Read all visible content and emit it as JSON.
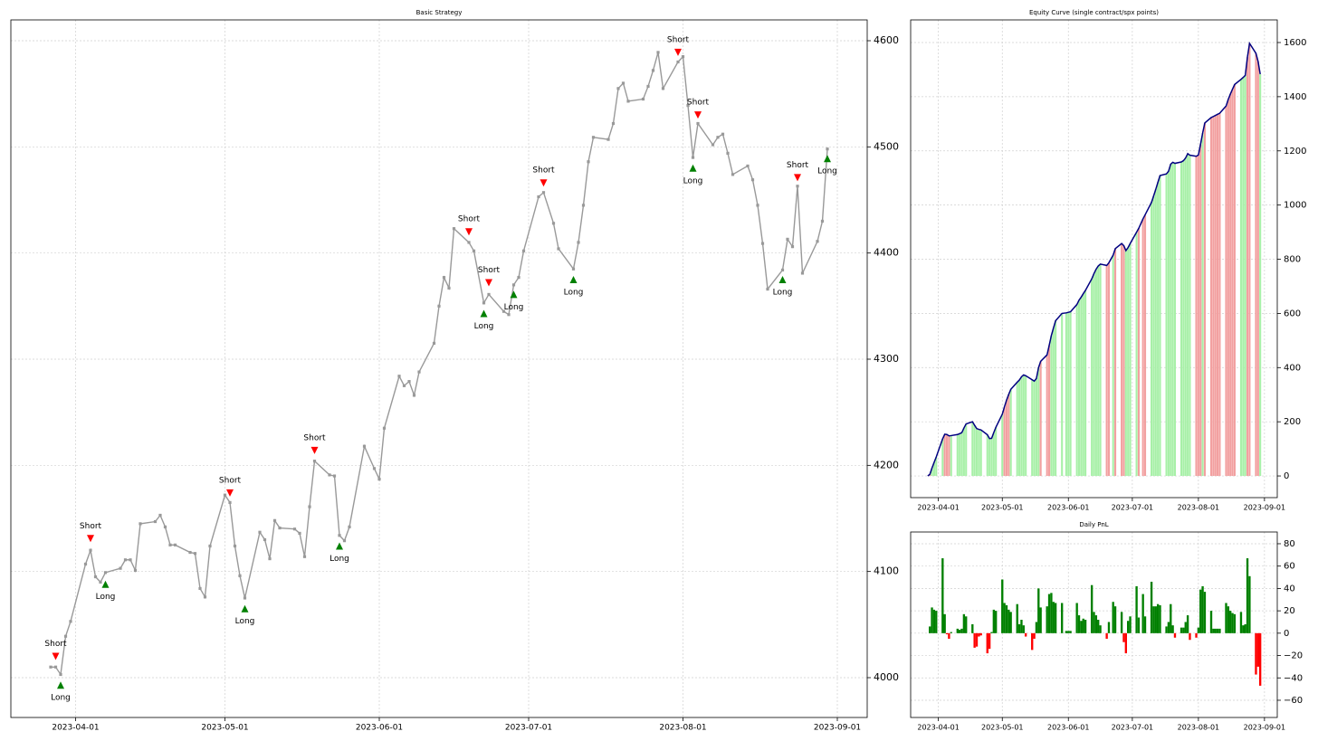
{
  "chart_data": [
    {
      "type": "line",
      "title": "Basic Strategy",
      "x": [
        "2023-03-27",
        "2023-03-28",
        "2023-03-29",
        "2023-03-30",
        "2023-03-31",
        "2023-04-03",
        "2023-04-04",
        "2023-04-05",
        "2023-04-06",
        "2023-04-07",
        "2023-04-10",
        "2023-04-11",
        "2023-04-12",
        "2023-04-13",
        "2023-04-14",
        "2023-04-17",
        "2023-04-18",
        "2023-04-19",
        "2023-04-20",
        "2023-04-21",
        "2023-04-24",
        "2023-04-25",
        "2023-04-26",
        "2023-04-27",
        "2023-04-28",
        "2023-05-01",
        "2023-05-02",
        "2023-05-03",
        "2023-05-04",
        "2023-05-05",
        "2023-05-08",
        "2023-05-09",
        "2023-05-10",
        "2023-05-11",
        "2023-05-12",
        "2023-05-15",
        "2023-05-16",
        "2023-05-17",
        "2023-05-18",
        "2023-05-19",
        "2023-05-22",
        "2023-05-23",
        "2023-05-24",
        "2023-05-25",
        "2023-05-26",
        "2023-05-29",
        "2023-05-31",
        "2023-06-01",
        "2023-06-02",
        "2023-06-05",
        "2023-06-06",
        "2023-06-07",
        "2023-06-08",
        "2023-06-09",
        "2023-06-12",
        "2023-06-13",
        "2023-06-14",
        "2023-06-15",
        "2023-06-16",
        "2023-06-19",
        "2023-06-20",
        "2023-06-22",
        "2023-06-23",
        "2023-06-26",
        "2023-06-27",
        "2023-06-28",
        "2023-06-29",
        "2023-06-30",
        "2023-07-03",
        "2023-07-04",
        "2023-07-06",
        "2023-07-07",
        "2023-07-10",
        "2023-07-11",
        "2023-07-12",
        "2023-07-13",
        "2023-07-14",
        "2023-07-17",
        "2023-07-18",
        "2023-07-19",
        "2023-07-20",
        "2023-07-21",
        "2023-07-24",
        "2023-07-25",
        "2023-07-26",
        "2023-07-27",
        "2023-07-28",
        "2023-07-31",
        "2023-08-01",
        "2023-08-02",
        "2023-08-03",
        "2023-08-04",
        "2023-08-07",
        "2023-08-08",
        "2023-08-09",
        "2023-08-10",
        "2023-08-11",
        "2023-08-14",
        "2023-08-15",
        "2023-08-16",
        "2023-08-17",
        "2023-08-18",
        "2023-08-21",
        "2023-08-22",
        "2023-08-23",
        "2023-08-24",
        "2023-08-25",
        "2023-08-28",
        "2023-08-29",
        "2023-08-30"
      ],
      "values": [
        4010,
        4010,
        4003,
        4039,
        4053,
        4107,
        4120,
        4095,
        4090,
        4099,
        4103,
        4111,
        4111,
        4101,
        4145,
        4147,
        4153,
        4142,
        4125,
        4125,
        4118,
        4117,
        4084,
        4076,
        4124,
        4172,
        4165,
        4124,
        4096,
        4075,
        4137,
        4130,
        4112,
        4148,
        4141,
        4140,
        4136,
        4114,
        4161,
        4204,
        4191,
        4190,
        4134,
        4129,
        4142,
        4218,
        4197,
        4187,
        4235,
        4284,
        4275,
        4279,
        4266,
        4288,
        4315,
        4350,
        4377,
        4367,
        4423,
        4410,
        4402,
        4353,
        4361,
        4345,
        4342,
        4370,
        4377,
        4402,
        4453,
        4457,
        4428,
        4404,
        4385,
        4410,
        4445,
        4486,
        4509,
        4507,
        4522,
        4555,
        4560,
        4543,
        4545,
        4557,
        4572,
        4589,
        4555,
        4580,
        4585,
        4539,
        4490,
        4522,
        4502,
        4509,
        4512,
        4494,
        4474,
        4482,
        4469,
        4445,
        4409,
        4366,
        4384,
        4413,
        4406,
        4463,
        4381,
        4411,
        4430,
        4498
      ],
      "color": "#999999",
      "short_signals": {
        "label": "Short",
        "color": "#ff0000",
        "x": [
          "2023-03-28",
          "2023-04-04",
          "2023-05-02",
          "2023-05-19",
          "2023-06-19",
          "2023-06-23",
          "2023-07-04",
          "2023-07-31",
          "2023-08-04",
          "2023-08-24"
        ],
        "values": [
          4020,
          4131,
          4174,
          4214,
          4420,
          4372,
          4466,
          4589,
          4530,
          4471
        ]
      },
      "long_signals": {
        "label": "Long",
        "color": "#008000",
        "x": [
          "2023-03-29",
          "2023-04-07",
          "2023-05-05",
          "2023-05-24",
          "2023-06-22",
          "2023-06-28",
          "2023-07-10",
          "2023-08-03",
          "2023-08-21",
          "2023-08-30"
        ],
        "values": [
          3993,
          4088,
          4065,
          4124,
          4343,
          4361,
          4375,
          4480,
          4375,
          4489
        ]
      },
      "xlim": [
        "2023-03-19",
        "2023-09-07"
      ],
      "xticks": [
        "2023-04-01",
        "2023-05-01",
        "2023-06-01",
        "2023-07-01",
        "2023-08-01",
        "2023-09-01"
      ],
      "ylim": [
        3962.5,
        4619.6
      ],
      "yticks": [
        4000,
        4100,
        4200,
        4300,
        4400,
        4500,
        4600
      ],
      "grid": true
    },
    {
      "type": "equity",
      "title": "Equity Curve (single contract/spx points)",
      "x": [
        "2023-03-27",
        "2023-03-28",
        "2023-03-29",
        "2023-03-30",
        "2023-03-31",
        "2023-04-03",
        "2023-04-04",
        "2023-04-05",
        "2023-04-06",
        "2023-04-07",
        "2023-04-10",
        "2023-04-11",
        "2023-04-12",
        "2023-04-13",
        "2023-04-14",
        "2023-04-17",
        "2023-04-18",
        "2023-04-19",
        "2023-04-20",
        "2023-04-21",
        "2023-04-24",
        "2023-04-25",
        "2023-04-26",
        "2023-04-27",
        "2023-04-28",
        "2023-05-01",
        "2023-05-02",
        "2023-05-03",
        "2023-05-04",
        "2023-05-05",
        "2023-05-08",
        "2023-05-09",
        "2023-05-10",
        "2023-05-11",
        "2023-05-12",
        "2023-05-15",
        "2023-05-16",
        "2023-05-17",
        "2023-05-18",
        "2023-05-19",
        "2023-05-22",
        "2023-05-23",
        "2023-05-24",
        "2023-05-25",
        "2023-05-26",
        "2023-05-29",
        "2023-05-31",
        "2023-06-01",
        "2023-06-02",
        "2023-06-05",
        "2023-06-06",
        "2023-06-07",
        "2023-06-08",
        "2023-06-09",
        "2023-06-12",
        "2023-06-13",
        "2023-06-14",
        "2023-06-15",
        "2023-06-16",
        "2023-06-19",
        "2023-06-20",
        "2023-06-22",
        "2023-06-23",
        "2023-06-26",
        "2023-06-27",
        "2023-06-28",
        "2023-06-29",
        "2023-06-30",
        "2023-07-03",
        "2023-07-04",
        "2023-07-06",
        "2023-07-07",
        "2023-07-10",
        "2023-07-11",
        "2023-07-12",
        "2023-07-13",
        "2023-07-14",
        "2023-07-17",
        "2023-07-18",
        "2023-07-19",
        "2023-07-20",
        "2023-07-21",
        "2023-07-24",
        "2023-07-25",
        "2023-07-26",
        "2023-07-27",
        "2023-07-28",
        "2023-07-31",
        "2023-08-01",
        "2023-08-02",
        "2023-08-03",
        "2023-08-04",
        "2023-08-07",
        "2023-08-08",
        "2023-08-09",
        "2023-08-10",
        "2023-08-11",
        "2023-08-14",
        "2023-08-15",
        "2023-08-16",
        "2023-08-17",
        "2023-08-18",
        "2023-08-21",
        "2023-08-22",
        "2023-08-23",
        "2023-08-24",
        "2023-08-25",
        "2023-08-28",
        "2023-08-29",
        "2023-08-30"
      ],
      "values": [
        0,
        6,
        29,
        50,
        70,
        137,
        154,
        153,
        148,
        149,
        153,
        156,
        160,
        177,
        192,
        200,
        187,
        175,
        172,
        170,
        152,
        138,
        139,
        160,
        180,
        228,
        255,
        280,
        301,
        320,
        346,
        354,
        366,
        373,
        370,
        355,
        350,
        360,
        400,
        423,
        447,
        482,
        518,
        546,
        573,
        600,
        602,
        604,
        606,
        633,
        649,
        660,
        673,
        685,
        728,
        747,
        763,
        775,
        782,
        777,
        787,
        815,
        839,
        858,
        850,
        832,
        843,
        858,
        900,
        914,
        949,
        964,
        1010,
        1034,
        1058,
        1084,
        1109,
        1115,
        1125,
        1151,
        1158,
        1154,
        1159,
        1164,
        1174,
        1190,
        1184,
        1180,
        1185,
        1224,
        1266,
        1303,
        1323,
        1327,
        1331,
        1335,
        1339,
        1366,
        1390,
        1410,
        1428,
        1445,
        1464,
        1471,
        1479,
        1546,
        1597,
        1560,
        1530,
        1483
      ],
      "color": "#000080",
      "long_color": "#a8f0a8",
      "short_color": "#f2a0a0",
      "xlim": [
        "2023-03-19",
        "2023-09-07"
      ],
      "xticks": [
        "2023-04-01",
        "2023-05-01",
        "2023-06-01",
        "2023-07-01",
        "2023-08-01",
        "2023-09-01"
      ],
      "ylim": [
        -80,
        1683.5
      ],
      "yticks": [
        0,
        200,
        400,
        600,
        800,
        1000,
        1200,
        1400,
        1600
      ],
      "grid": true
    },
    {
      "type": "bar",
      "title": "Daily PnL",
      "x": [
        "2023-03-27",
        "2023-03-28",
        "2023-03-29",
        "2023-03-30",
        "2023-03-31",
        "2023-04-03",
        "2023-04-04",
        "2023-04-05",
        "2023-04-06",
        "2023-04-07",
        "2023-04-10",
        "2023-04-11",
        "2023-04-12",
        "2023-04-13",
        "2023-04-14",
        "2023-04-17",
        "2023-04-18",
        "2023-04-19",
        "2023-04-20",
        "2023-04-21",
        "2023-04-24",
        "2023-04-25",
        "2023-04-26",
        "2023-04-27",
        "2023-04-28",
        "2023-05-01",
        "2023-05-02",
        "2023-05-03",
        "2023-05-04",
        "2023-05-05",
        "2023-05-08",
        "2023-05-09",
        "2023-05-10",
        "2023-05-11",
        "2023-05-12",
        "2023-05-15",
        "2023-05-16",
        "2023-05-17",
        "2023-05-18",
        "2023-05-19",
        "2023-05-22",
        "2023-05-23",
        "2023-05-24",
        "2023-05-25",
        "2023-05-26",
        "2023-05-29",
        "2023-05-31",
        "2023-06-01",
        "2023-06-02",
        "2023-06-05",
        "2023-06-06",
        "2023-06-07",
        "2023-06-08",
        "2023-06-09",
        "2023-06-12",
        "2023-06-13",
        "2023-06-14",
        "2023-06-15",
        "2023-06-16",
        "2023-06-19",
        "2023-06-20",
        "2023-06-22",
        "2023-06-23",
        "2023-06-26",
        "2023-06-27",
        "2023-06-28",
        "2023-06-29",
        "2023-06-30",
        "2023-07-03",
        "2023-07-04",
        "2023-07-06",
        "2023-07-07",
        "2023-07-10",
        "2023-07-11",
        "2023-07-12",
        "2023-07-13",
        "2023-07-14",
        "2023-07-17",
        "2023-07-18",
        "2023-07-19",
        "2023-07-20",
        "2023-07-21",
        "2023-07-24",
        "2023-07-25",
        "2023-07-26",
        "2023-07-27",
        "2023-07-28",
        "2023-07-31",
        "2023-08-01",
        "2023-08-02",
        "2023-08-03",
        "2023-08-04",
        "2023-08-07",
        "2023-08-08",
        "2023-08-09",
        "2023-08-10",
        "2023-08-11",
        "2023-08-14",
        "2023-08-15",
        "2023-08-16",
        "2023-08-17",
        "2023-08-18",
        "2023-08-21",
        "2023-08-22",
        "2023-08-23",
        "2023-08-24",
        "2023-08-25",
        "2023-08-28",
        "2023-08-29",
        "2023-08-30"
      ],
      "values": [
        0,
        6,
        23,
        21,
        20,
        67,
        17,
        -1,
        -5,
        1,
        4,
        3,
        4,
        17,
        15,
        8,
        -13,
        -12,
        -3,
        -2,
        -18,
        -14,
        1,
        21,
        20,
        48,
        27,
        25,
        21,
        19,
        26,
        8,
        12,
        7,
        -3,
        -15,
        -5,
        10,
        40,
        23,
        24,
        35,
        36,
        28,
        27,
        27,
        2,
        2,
        2,
        27,
        16,
        11,
        13,
        12,
        43,
        19,
        16,
        12,
        7,
        -5,
        10,
        28,
        24,
        19,
        -8,
        -18,
        11,
        15,
        42,
        14,
        35,
        15,
        46,
        24,
        24,
        26,
        25,
        6,
        10,
        26,
        7,
        -4,
        5,
        5,
        10,
        16,
        -6,
        -4,
        5,
        39,
        42,
        37,
        20,
        4,
        4,
        4,
        4,
        27,
        24,
        20,
        18,
        17,
        19,
        7,
        8,
        67,
        51,
        -37,
        -30,
        -47
      ],
      "positive_color": "#008000",
      "negative_color": "#ff0000",
      "xlim": [
        "2023-03-19",
        "2023-09-07"
      ],
      "xticks": [
        "2023-04-01",
        "2023-05-01",
        "2023-06-01",
        "2023-07-01",
        "2023-08-01",
        "2023-09-01"
      ],
      "ylim": [
        -75.4,
        90.5
      ],
      "yticks": [
        {
          "value": -60,
          "label": "−60"
        },
        {
          "value": -40,
          "label": "−40"
        },
        {
          "value": -20,
          "label": "−20"
        },
        0,
        20,
        40,
        60,
        80
      ],
      "grid": true
    }
  ]
}
